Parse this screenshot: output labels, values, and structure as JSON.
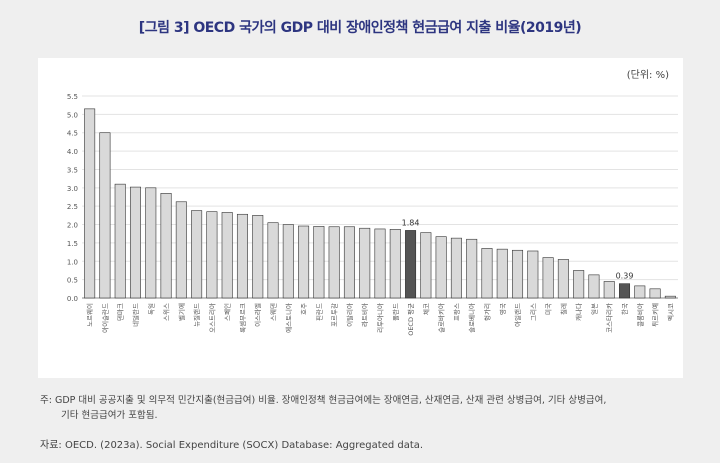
{
  "title": "[그림 3] OECD 국가의 GDP 대비 장애인정책 현금급여 지출 비율(2019년)",
  "unit": "(단위: %)",
  "note_line1": "주: GDP 대비 공공지출 및 의무적 민간지출(현금급여) 비율. 장애인정책 현금급여에는 장애연금, 산재연금, 산재 관련 상병급여, 기타 상병급여,",
  "note_line2": "기타 현금급여가 포함됨.",
  "source": "자료: OECD. (2023a). Social Expenditure (SOCX) Database: Aggregated data.",
  "chart_data": {
    "type": "bar",
    "ylim": [
      0,
      5.5
    ],
    "yticks": [
      "0.0",
      "0.5",
      "1.0",
      "1.5",
      "2.0",
      "2.5",
      "3.0",
      "3.5",
      "4.0",
      "4.5",
      "5.0",
      "5.5"
    ],
    "grid": true,
    "colors": {
      "default": "#d9d9d9",
      "highlight": "#555555"
    },
    "highlight": [
      "OECD 평균",
      "한국"
    ],
    "data_labels": {
      "OECD 평균": "1.84",
      "한국": "0.39"
    },
    "categories": [
      "노르웨이",
      "아이슬란드",
      "덴마크",
      "네덜란드",
      "독일",
      "스위스",
      "벨기에",
      "뉴질랜드",
      "오스트리아",
      "스페인",
      "룩셈부르크",
      "이스라엘",
      "스웨덴",
      "에스토니아",
      "호주",
      "핀란드",
      "포르투갈",
      "이탈리아",
      "라트비아",
      "리투아니아",
      "폴란드",
      "OECD 평균",
      "체코",
      "슬로바키아",
      "프랑스",
      "슬로베니아",
      "헝가리",
      "영국",
      "아일랜드",
      "그리스",
      "미국",
      "칠레",
      "캐나다",
      "일본",
      "코스타리카",
      "한국",
      "콜롬비아",
      "튀르키예",
      "멕시코"
    ],
    "values": [
      5.15,
      4.5,
      3.1,
      3.02,
      3.0,
      2.85,
      2.62,
      2.38,
      2.35,
      2.33,
      2.28,
      2.25,
      2.05,
      2.0,
      1.96,
      1.95,
      1.94,
      1.94,
      1.9,
      1.88,
      1.87,
      1.84,
      1.78,
      1.67,
      1.63,
      1.6,
      1.35,
      1.33,
      1.3,
      1.28,
      1.1,
      1.05,
      0.75,
      0.63,
      0.45,
      0.39,
      0.33,
      0.25,
      0.05
    ]
  }
}
